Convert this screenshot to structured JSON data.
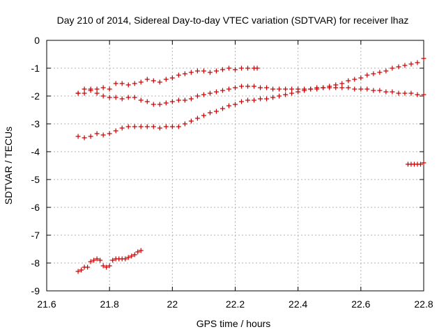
{
  "chart_data": {
    "type": "scatter",
    "title": "Day 210 of 2014, Sidereal Day-to-day VTEC variation (SDTVAR) for receiver lhaz",
    "xlabel": "GPS time / hours",
    "ylabel": "SDTVAR / TECUs",
    "xlim": [
      21.6,
      22.8
    ],
    "ylim": [
      -9,
      0
    ],
    "xticks": [
      "21.6",
      "21.8",
      "22",
      "22.2",
      "22.4",
      "22.6",
      "22.8"
    ],
    "yticks": [
      "0",
      "-1",
      "-2",
      "-3",
      "-4",
      "-5",
      "-6",
      "-7",
      "-8",
      "-9"
    ],
    "grid": true,
    "marker": "+",
    "marker_color": "#cc0000",
    "series": [
      {
        "x": [
          21.7,
          21.72,
          21.74,
          21.76,
          21.78,
          21.8,
          21.82,
          21.84,
          21.86,
          21.88,
          21.9,
          21.92,
          21.94,
          21.96,
          21.98,
          22.0,
          22.02,
          22.04,
          22.06,
          22.08,
          22.1,
          22.12,
          22.14,
          22.16,
          22.18,
          22.2,
          22.22,
          22.24,
          22.26,
          22.27
        ],
        "y": [
          -1.9,
          -1.75,
          -1.75,
          -1.75,
          -1.7,
          -1.75,
          -1.55,
          -1.55,
          -1.6,
          -1.55,
          -1.5,
          -1.4,
          -1.45,
          -1.5,
          -1.4,
          -1.35,
          -1.25,
          -1.2,
          -1.15,
          -1.1,
          -1.1,
          -1.15,
          -1.1,
          -1.05,
          -1.0,
          -1.05,
          -1.0,
          -1.0,
          -1.0,
          -1.0
        ]
      },
      {
        "x": [
          21.7,
          21.72,
          21.74,
          21.76,
          21.78,
          21.8,
          21.82,
          21.84,
          21.86,
          21.88,
          21.9,
          21.92,
          21.94,
          21.96,
          21.98,
          22.0,
          22.02,
          22.04,
          22.06,
          22.08,
          22.1,
          22.12,
          22.14,
          22.16,
          22.18,
          22.2,
          22.22,
          22.24,
          22.26,
          22.28,
          22.3,
          22.32,
          22.34,
          22.36,
          22.38,
          22.4,
          22.42,
          22.44,
          22.46,
          22.48,
          22.5,
          22.52,
          22.54,
          22.56,
          22.58,
          22.6,
          22.62,
          22.64,
          22.66,
          22.68,
          22.7,
          22.72,
          22.74,
          22.76,
          22.78,
          22.8
        ],
        "y": [
          -1.9,
          -1.9,
          -1.8,
          -1.9,
          -2.0,
          -2.05,
          -2.05,
          -2.1,
          -2.05,
          -2.05,
          -2.15,
          -2.2,
          -2.3,
          -2.3,
          -2.25,
          -2.2,
          -2.15,
          -2.15,
          -2.1,
          -2.0,
          -1.95,
          -1.9,
          -1.85,
          -1.8,
          -1.75,
          -1.7,
          -1.65,
          -1.65,
          -1.65,
          -1.7,
          -1.7,
          -1.75,
          -1.75,
          -1.75,
          -1.75,
          -1.75,
          -1.75,
          -1.75,
          -1.7,
          -1.7,
          -1.7,
          -1.7,
          -1.7,
          -1.7,
          -1.75,
          -1.75,
          -1.75,
          -1.8,
          -1.8,
          -1.85,
          -1.85,
          -1.9,
          -1.9,
          -1.9,
          -1.95,
          -1.95
        ]
      },
      {
        "x": [
          21.7,
          21.72,
          21.74,
          21.76,
          21.78,
          21.8,
          21.82,
          21.84,
          21.86,
          21.88,
          21.9,
          21.92,
          21.94,
          21.96,
          21.98,
          22.0,
          22.02,
          22.04,
          22.06,
          22.08,
          22.1,
          22.12,
          22.14,
          22.16,
          22.18,
          22.2,
          22.22,
          22.24,
          22.26,
          22.28,
          22.3,
          22.32,
          22.34,
          22.36,
          22.38,
          22.4,
          22.42,
          22.44,
          22.46,
          22.48,
          22.5,
          22.52,
          22.54,
          22.56,
          22.58,
          22.6,
          22.62,
          22.64,
          22.66,
          22.68,
          22.7,
          22.72,
          22.74,
          22.76,
          22.78,
          22.8
        ],
        "y": [
          -3.45,
          -3.5,
          -3.45,
          -3.35,
          -3.4,
          -3.35,
          -3.25,
          -3.15,
          -3.1,
          -3.1,
          -3.1,
          -3.1,
          -3.1,
          -3.15,
          -3.1,
          -3.1,
          -3.1,
          -3.0,
          -2.9,
          -2.8,
          -2.7,
          -2.6,
          -2.55,
          -2.45,
          -2.35,
          -2.3,
          -2.2,
          -2.15,
          -2.15,
          -2.1,
          -2.1,
          -2.05,
          -2.0,
          -1.95,
          -1.9,
          -1.85,
          -1.8,
          -1.75,
          -1.75,
          -1.7,
          -1.65,
          -1.6,
          -1.55,
          -1.45,
          -1.4,
          -1.35,
          -1.25,
          -1.2,
          -1.15,
          -1.1,
          -1.0,
          -0.95,
          -0.9,
          -0.85,
          -0.8,
          -0.65
        ]
      },
      {
        "x": [
          22.75,
          22.76,
          22.77,
          22.78,
          22.79,
          22.8
        ],
        "y": [
          -4.45,
          -4.45,
          -4.45,
          -4.45,
          -4.45,
          -4.4
        ]
      },
      {
        "x": [
          21.7,
          21.71,
          21.72,
          21.73,
          21.74,
          21.75,
          21.76,
          21.77,
          21.78,
          21.79,
          21.8,
          21.81,
          21.82,
          21.83,
          21.84,
          21.85,
          21.86,
          21.87,
          21.88,
          21.89,
          21.9
        ],
        "y": [
          -8.3,
          -8.25,
          -8.15,
          -8.15,
          -7.95,
          -7.9,
          -7.85,
          -7.9,
          -8.1,
          -8.15,
          -8.1,
          -7.9,
          -7.85,
          -7.85,
          -7.85,
          -7.85,
          -7.8,
          -7.75,
          -7.7,
          -7.6,
          -7.55
        ]
      }
    ]
  }
}
